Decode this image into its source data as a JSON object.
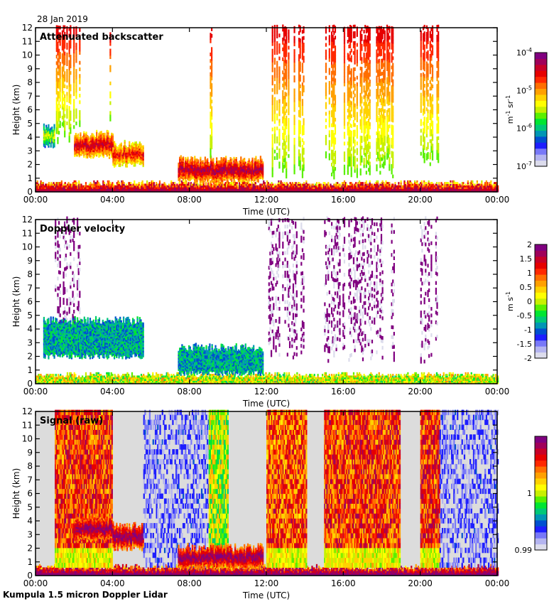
{
  "header": {
    "date": "28 Jan 2019"
  },
  "footer": {
    "instrument": "Kumpula 1.5 micron Doppler Lidar"
  },
  "colors": {
    "colormap": [
      "#dcdcec",
      "#b4b4f0",
      "#7878f8",
      "#1e1eff",
      "#0050d0",
      "#0096b4",
      "#00c878",
      "#00e632",
      "#5af000",
      "#c8f000",
      "#ffff00",
      "#ffd200",
      "#ffa000",
      "#ff6e00",
      "#ff2800",
      "#e60000",
      "#c80028",
      "#a0005a",
      "#800080"
    ],
    "missing": "#ffffff",
    "raw_background": "#dcdcdc"
  },
  "chart_data": [
    {
      "type": "heatmap",
      "title": "Attenuated backscatter",
      "xlabel": "Time (UTC)",
      "ylabel": "Height (km)",
      "xlim": [
        0,
        24
      ],
      "ylim": [
        0,
        12
      ],
      "x_ticks": [
        "00:00",
        "04:00",
        "08:00",
        "12:00",
        "16:00",
        "20:00",
        "00:00"
      ],
      "y_ticks": [
        "0",
        "1",
        "2",
        "3",
        "4",
        "5",
        "6",
        "7",
        "8",
        "9",
        "10",
        "11",
        "12"
      ],
      "colorbar": {
        "label": "m-1 sr-1",
        "label_main": "m",
        "label_sup1": "-1",
        "label_mid": " sr",
        "label_sup2": "-1",
        "scale": "log",
        "range": [
          1e-07,
          0.0001
        ],
        "ticks": [
          {
            "base": "10",
            "exp": "-7",
            "value": 1e-07
          },
          {
            "base": "10",
            "exp": "-6",
            "value": 1e-06
          },
          {
            "base": "10",
            "exp": "-5",
            "value": 1e-05
          },
          {
            "base": "10",
            "exp": "-4",
            "value": 0.0001
          }
        ]
      },
      "features": [
        {
          "kind": "surface-layer",
          "x": [
            0,
            24
          ],
          "top_km": 0.6,
          "level": 0.95
        },
        {
          "kind": "precip-column",
          "x": [
            1.0,
            2.3
          ],
          "base_km": 3.5,
          "top_km": 12,
          "level": 0.85
        },
        {
          "kind": "precip-column",
          "x": [
            3.85,
            4.0
          ],
          "base_km": 5,
          "top_km": 11.5,
          "level": 0.8
        },
        {
          "kind": "cloud-layer",
          "x": [
            0.4,
            1.0
          ],
          "base_km": 3.4,
          "top_km": 4.6,
          "level": 0.55
        },
        {
          "kind": "cloud-layer",
          "x": [
            2.0,
            4.0
          ],
          "base_km": 2.6,
          "top_km": 4.2,
          "level": 0.9
        },
        {
          "kind": "cloud-layer",
          "x": [
            4.0,
            5.6
          ],
          "base_km": 2.0,
          "top_km": 3.4,
          "level": 0.85
        },
        {
          "kind": "cloud-layer",
          "x": [
            7.4,
            11.8
          ],
          "base_km": 0.8,
          "top_km": 2.3,
          "level": 0.95
        },
        {
          "kind": "precip-column",
          "x": [
            9.0,
            9.15
          ],
          "base_km": 1.5,
          "top_km": 12,
          "level": 0.75
        },
        {
          "kind": "precip-column",
          "x": [
            12.1,
            14.0
          ],
          "base_km": 0.9,
          "top_km": 12,
          "level": 0.7
        },
        {
          "kind": "precip-column",
          "x": [
            15.0,
            17.4
          ],
          "base_km": 0.9,
          "top_km": 12,
          "level": 0.7
        },
        {
          "kind": "precip-column",
          "x": [
            17.7,
            18.6
          ],
          "base_km": 1.0,
          "top_km": 12,
          "level": 0.7
        },
        {
          "kind": "precip-column",
          "x": [
            20.0,
            20.9
          ],
          "base_km": 1.2,
          "top_km": 12,
          "level": 0.7
        }
      ]
    },
    {
      "type": "heatmap",
      "title": "Doppler velocity",
      "xlabel": "Time (UTC)",
      "ylabel": "Height (km)",
      "xlim": [
        0,
        24
      ],
      "ylim": [
        0,
        12
      ],
      "x_ticks": [
        "00:00",
        "04:00",
        "08:00",
        "12:00",
        "16:00",
        "20:00",
        "00:00"
      ],
      "y_ticks": [
        "0",
        "1",
        "2",
        "3",
        "4",
        "5",
        "6",
        "7",
        "8",
        "9",
        "10",
        "11",
        "12"
      ],
      "colorbar": {
        "label": "m s-1",
        "label_main": "m s",
        "label_sup": "-1",
        "scale": "linear",
        "range": [
          -2,
          2
        ],
        "ticks": [
          "-2",
          "-1.5",
          "-1",
          "-0.5",
          "0",
          "0.5",
          "1",
          "1.5",
          "2"
        ]
      },
      "features": [
        {
          "kind": "surface-layer",
          "x": [
            0,
            24
          ],
          "top_km": 0.6,
          "level": 0.5
        },
        {
          "kind": "noise-column",
          "x": [
            1.0,
            2.3
          ],
          "base_km": 2.4,
          "top_km": 12
        },
        {
          "kind": "cloud-layer",
          "x": [
            0.4,
            5.6
          ],
          "base_km": 2.0,
          "top_km": 4.6,
          "level": 0.25
        },
        {
          "kind": "cloud-layer",
          "x": [
            7.4,
            11.8
          ],
          "base_km": 0.8,
          "top_km": 2.6,
          "level": 0.35
        },
        {
          "kind": "noise-column",
          "x": [
            12.1,
            14.0
          ],
          "base_km": 1.5,
          "top_km": 12
        },
        {
          "kind": "noise-column",
          "x": [
            15.0,
            18.6
          ],
          "base_km": 1.5,
          "top_km": 12
        },
        {
          "kind": "noise-column",
          "x": [
            20.0,
            20.9
          ],
          "base_km": 1.2,
          "top_km": 12
        }
      ]
    },
    {
      "type": "heatmap",
      "title": "Signal (raw)",
      "xlabel": "Time (UTC)",
      "ylabel": "Height (km)",
      "xlim": [
        0,
        24
      ],
      "ylim": [
        0,
        12
      ],
      "x_ticks": [
        "00:00",
        "04:00",
        "08:00",
        "12:00",
        "16:00",
        "20:00",
        "00:00"
      ],
      "y_ticks": [
        "0",
        "1",
        "2",
        "3",
        "4",
        "5",
        "6",
        "7",
        "8",
        "9",
        "10",
        "11",
        "12"
      ],
      "colorbar": {
        "label": "",
        "scale": "linear",
        "range": [
          0.99,
          1.01
        ],
        "ticks": [
          "0.99",
          "1"
        ]
      },
      "features": [
        {
          "kind": "surface-layer",
          "x": [
            0,
            24
          ],
          "top_km": 0.6,
          "level": 1.0
        },
        {
          "kind": "precip-band",
          "x": [
            1.0,
            4.0
          ],
          "level": 0.78
        },
        {
          "kind": "cloud-layer",
          "x": [
            2.0,
            4.0
          ],
          "base_km": 2.6,
          "top_km": 4.2,
          "level": 1.0
        },
        {
          "kind": "cloud-layer",
          "x": [
            4.0,
            5.6
          ],
          "base_km": 2.0,
          "top_km": 3.6,
          "level": 1.0
        },
        {
          "kind": "noise-band",
          "x": [
            5.6,
            9.0
          ],
          "level": 0.15
        },
        {
          "kind": "precip-band",
          "x": [
            9.0,
            10.0
          ],
          "level": 0.5
        },
        {
          "kind": "cloud-layer",
          "x": [
            7.4,
            11.8
          ],
          "base_km": 0.6,
          "top_km": 2.0,
          "level": 1.0
        },
        {
          "kind": "precip-band",
          "x": [
            12.0,
            14.1
          ],
          "level": 0.75
        },
        {
          "kind": "precip-band",
          "x": [
            15.0,
            18.9
          ],
          "level": 0.78
        },
        {
          "kind": "precip-band",
          "x": [
            20.0,
            21.0
          ],
          "level": 0.8
        },
        {
          "kind": "noise-band",
          "x": [
            21.0,
            24.0
          ],
          "level": 0.15
        }
      ]
    }
  ]
}
